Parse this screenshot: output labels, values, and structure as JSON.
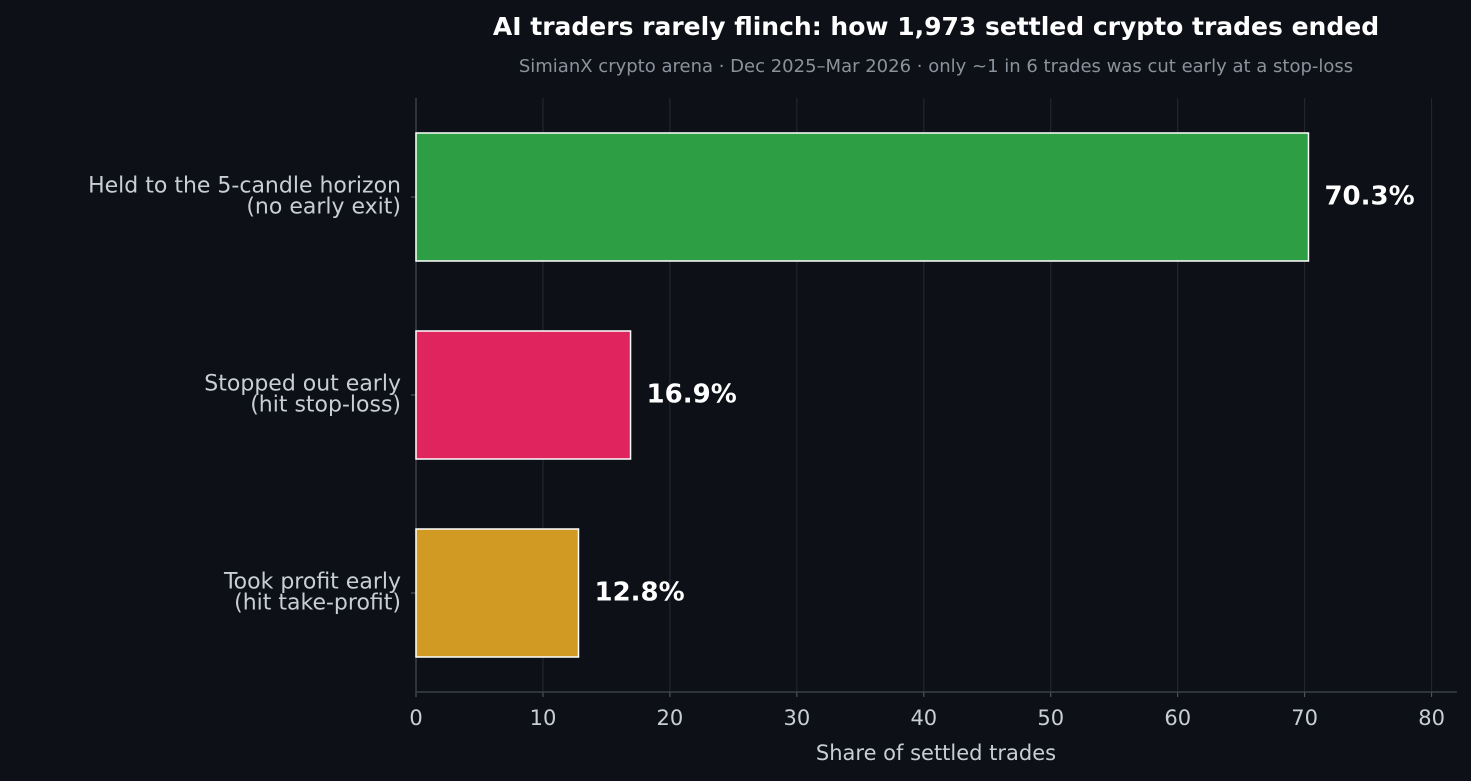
{
  "chart_data": {
    "type": "barh",
    "title": "AI traders rarely flinch: how 1,973 settled crypto trades ended",
    "subtitle": "SimianX crypto arena · Dec 2025–Mar 2026 · only ~1 in 6 trades was cut early at a stop-loss",
    "x_label": "Share of settled trades",
    "categories": [
      "Held to the 5-candle horizon\n(no early exit)",
      "Stopped out early\n(hit stop-loss)",
      "Took profit early\n(hit take-profit)"
    ],
    "values": [
      70.3,
      16.9,
      12.8
    ],
    "value_labels": [
      "70.3%",
      "16.9%",
      "12.8%"
    ],
    "colors": [
      "#2e9e44",
      "#e0245e",
      "#d19a22"
    ],
    "xlim": [
      0,
      82
    ],
    "xticks": [
      0,
      10,
      20,
      30,
      40,
      50,
      60,
      70,
      80
    ],
    "grid": true
  }
}
